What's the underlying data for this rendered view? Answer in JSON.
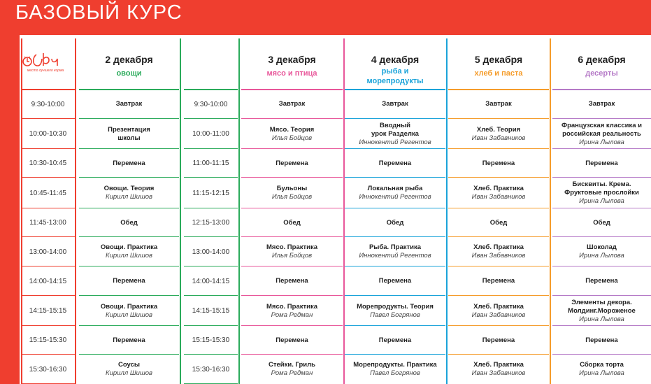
{
  "header": {
    "title": "БАЗОВЫЙ КУРС"
  },
  "logo": {
    "tagline": "место лучшего корма"
  },
  "times_left": [
    "9:30-10:00",
    "10:00-10:30",
    "10:30-10:45",
    "10:45-11:45",
    "11:45-13:00",
    "13:00-14:00",
    "14:00-14:15",
    "14:15-15:15",
    "15:15-15:30",
    "15:30-16:30"
  ],
  "times_right": [
    "9:30-10:00",
    "10:00-11:00",
    "11:00-11:15",
    "11:15-12:15",
    "12:15-13:00",
    "13:00-14:00",
    "14:00-14:15",
    "14:15-15:15",
    "15:15-15:30",
    "15:30-16:30"
  ],
  "days": [
    {
      "date": "2 декабря",
      "theme": "овощи",
      "color": "#2bab5b",
      "rows": [
        {
          "title": "Завтрак",
          "teacher": ""
        },
        {
          "title": "Презентация школы",
          "teacher": ""
        },
        {
          "title": "Перемена",
          "teacher": ""
        },
        {
          "title": "Овощи. Теория",
          "teacher": "Кирилл Шишов"
        },
        {
          "title": "Обед",
          "teacher": ""
        },
        {
          "title": "Овощи. Практика",
          "teacher": "Кирилл Шишов"
        },
        {
          "title": "Перемена",
          "teacher": ""
        },
        {
          "title": "Овощи. Практика",
          "teacher": "Кирилл Шишов"
        },
        {
          "title": "Перемена",
          "teacher": ""
        },
        {
          "title": "Соусы",
          "teacher": "Кирилл Шишов"
        }
      ]
    },
    {
      "date": "3 декабря",
      "theme": "мясо и птица",
      "color": "#e8579a",
      "rows": [
        {
          "title": "Завтрак",
          "teacher": ""
        },
        {
          "title": "Мясо. Теория",
          "teacher": "Илья Бойцов"
        },
        {
          "title": "Перемена",
          "teacher": ""
        },
        {
          "title": "Бульоны",
          "teacher": "Илья Бойцов"
        },
        {
          "title": "Обед",
          "teacher": ""
        },
        {
          "title": "Мясо. Практика",
          "teacher": "Илья Бойцов"
        },
        {
          "title": "Перемена",
          "teacher": ""
        },
        {
          "title": "Мясо. Практика",
          "teacher": "Рома Редман"
        },
        {
          "title": "Перемена",
          "teacher": ""
        },
        {
          "title": "Стейки. Гриль",
          "teacher": "Рома Редман"
        }
      ]
    },
    {
      "date": "4 декабря",
      "theme": "рыба и морепродукты",
      "color": "#1aa3d9",
      "rows": [
        {
          "title": "Завтрак",
          "teacher": ""
        },
        {
          "title": "Вводный урок Разделка",
          "teacher": "Иннокентий Регентов"
        },
        {
          "title": "Перемена",
          "teacher": ""
        },
        {
          "title": "Локальная рыба",
          "teacher": "Иннокентий Регентов"
        },
        {
          "title": "Обед",
          "teacher": ""
        },
        {
          "title": "Рыба. Практика",
          "teacher": "Иннокентий Регентов"
        },
        {
          "title": "Перемена",
          "teacher": ""
        },
        {
          "title": "Морепродукты. Теория",
          "teacher": "Павел Богрянов"
        },
        {
          "title": "Перемена",
          "teacher": ""
        },
        {
          "title": "Морепродукты. Практика",
          "teacher": "Павел Богрянов"
        }
      ]
    },
    {
      "date": "5 декабря",
      "theme": "хлеб и паста",
      "color": "#f59c2b",
      "rows": [
        {
          "title": "Завтрак",
          "teacher": ""
        },
        {
          "title": "Хлеб. Теория",
          "teacher": "Иван Забавников"
        },
        {
          "title": "Перемена",
          "teacher": ""
        },
        {
          "title": "Хлеб. Практика",
          "teacher": "Иван Забавников"
        },
        {
          "title": "Обед",
          "teacher": ""
        },
        {
          "title": "Хлеб. Практика",
          "teacher": "Иван Забавников"
        },
        {
          "title": "Перемена",
          "teacher": ""
        },
        {
          "title": "Хлеб. Практика",
          "teacher": "Иван Забавников"
        },
        {
          "title": "Перемена",
          "teacher": ""
        },
        {
          "title": "Хлеб. Практика",
          "teacher": "Иван Забавников"
        }
      ]
    },
    {
      "date": "6 декабря",
      "theme": "десерты",
      "color": "#b57ac7",
      "rows": [
        {
          "title": "Завтрак",
          "teacher": ""
        },
        {
          "title": "Французская классика и российская реальность",
          "teacher": "Ирина Лылова"
        },
        {
          "title": "Перемена",
          "teacher": ""
        },
        {
          "title": "Бисквиты. Крема. Фруктовые прослойки",
          "teacher": "Ирина Лылова"
        },
        {
          "title": "Обед",
          "teacher": ""
        },
        {
          "title": "Шоколад",
          "teacher": "Ирина Лылова"
        },
        {
          "title": "Перемена",
          "teacher": ""
        },
        {
          "title": "Элементы декора. Молдинг.Мороженое",
          "teacher": "Ирина Лылова"
        },
        {
          "title": "Перемена",
          "teacher": ""
        },
        {
          "title": "Сборка торта",
          "teacher": "Ирина Лылова"
        }
      ]
    }
  ],
  "colors": {
    "header_bg": "#ef3e2f",
    "time_line_left": "#ef3e2f",
    "time_line_right": "#2bab5b"
  }
}
